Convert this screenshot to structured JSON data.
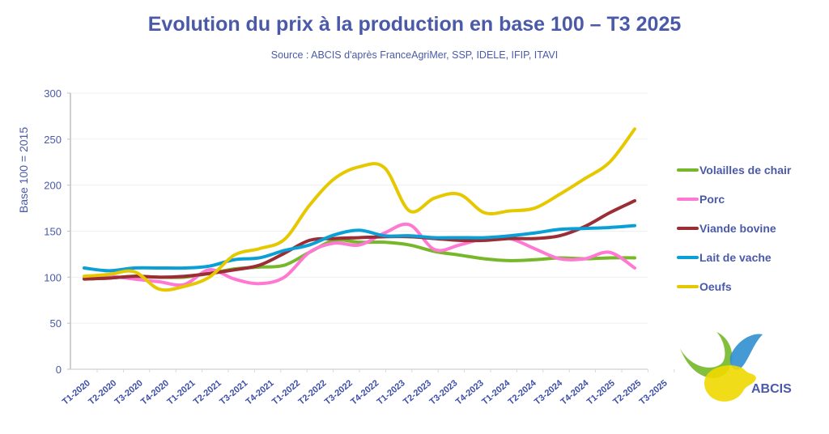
{
  "chart_data": {
    "type": "line",
    "title": "Evolution du prix à la production en base 100 – T3 2025",
    "subtitle": "Source : ABCIS d'après FranceAgriMer, SSP, IDELE, IFIP, ITAVI",
    "xlabel": "",
    "ylabel": "Base 100 = 2015",
    "ylim": [
      0,
      300
    ],
    "yticks": [
      "0",
      "50",
      "100",
      "150",
      "200",
      "250",
      "300"
    ],
    "grid": true,
    "legend_position": "right",
    "categories": [
      "T1-2020",
      "T2-2020",
      "T3-2020",
      "T4-2020",
      "T1-2021",
      "T2-2021",
      "T3-2021",
      "T4-2021",
      "T1-2022",
      "T2-2022",
      "T3-2022",
      "T4-2022",
      "T1-2023",
      "T2-2023",
      "T3-2023",
      "T4-2023",
      "T1-2024",
      "T2-2024",
      "T3-2024",
      "T4-2024",
      "T1-2025",
      "T2-2025",
      "T3-2025"
    ],
    "series": [
      {
        "name": "Volailles de chair",
        "color": "#76b82a",
        "values": [
          98,
          99,
          101,
          100,
          100,
          104,
          109,
          111,
          113,
          127,
          140,
          138,
          138,
          135,
          128,
          124,
          120,
          118,
          119,
          121,
          120,
          121,
          121
        ]
      },
      {
        "name": "Porc",
        "color": "#ff78d2",
        "values": [
          99,
          101,
          98,
          95,
          92,
          108,
          98,
          93,
          100,
          127,
          137,
          135,
          148,
          157,
          130,
          135,
          142,
          142,
          131,
          120,
          120,
          127,
          110
        ]
      },
      {
        "name": "Viande bovine",
        "color": "#9b2d35",
        "values": [
          98,
          99,
          101,
          100,
          101,
          104,
          108,
          113,
          126,
          140,
          142,
          143,
          144,
          144,
          142,
          140,
          140,
          142,
          142,
          145,
          155,
          170,
          183
        ]
      },
      {
        "name": "Lait de vache",
        "color": "#0aa0d6",
        "values": [
          110,
          107,
          110,
          110,
          110,
          112,
          119,
          121,
          129,
          135,
          146,
          151,
          145,
          145,
          143,
          143,
          143,
          145,
          148,
          152,
          153,
          154,
          156
        ]
      },
      {
        "name": "Oeufs",
        "color": "#e6c800",
        "values": [
          101,
          103,
          106,
          87,
          90,
          100,
          124,
          131,
          141,
          178,
          207,
          220,
          219,
          172,
          186,
          190,
          170,
          172,
          175,
          190,
          207,
          225,
          261
        ]
      }
    ]
  },
  "logo": {
    "text": "ABCIS"
  }
}
